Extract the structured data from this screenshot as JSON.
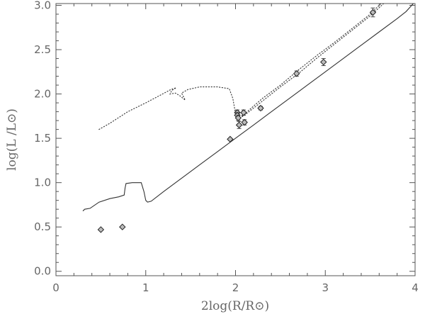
{
  "chart_data": {
    "type": "scatter",
    "title": "",
    "xlabel": "2log(R/R⊙)",
    "ylabel": "log(L /L⊙)",
    "xlim": [
      0,
      4
    ],
    "ylim": [
      -0.05,
      3.02
    ],
    "x_ticks": [
      0,
      1,
      2,
      3,
      4
    ],
    "x_tick_labels": [
      "0",
      "1",
      "2",
      "3",
      "4"
    ],
    "y_ticks": [
      0.0,
      0.5,
      1.0,
      1.5,
      2.0,
      2.5,
      3.0
    ],
    "y_tick_labels": [
      "0.0",
      "0.5",
      "1.0",
      "1.5",
      "2.0",
      "2.5",
      "3.0"
    ],
    "grid": false,
    "series": [
      {
        "style": "solid",
        "points": [
          [
            0.3,
            0.68
          ],
          [
            0.32,
            0.7
          ],
          [
            0.38,
            0.71
          ],
          [
            0.48,
            0.78
          ],
          [
            0.6,
            0.82
          ],
          [
            0.7,
            0.84
          ],
          [
            0.76,
            0.86
          ],
          [
            0.77,
            0.94
          ],
          [
            0.78,
            0.99
          ],
          [
            0.85,
            1.0
          ],
          [
            0.9,
            1.0
          ],
          [
            0.95,
            1.0
          ],
          [
            0.98,
            0.9
          ],
          [
            1.0,
            0.8
          ],
          [
            1.02,
            0.78
          ],
          [
            1.06,
            0.79
          ],
          [
            1.2,
            0.9
          ],
          [
            1.4,
            1.05
          ],
          [
            1.6,
            1.2
          ],
          [
            1.8,
            1.35
          ],
          [
            2.0,
            1.5
          ],
          [
            2.2,
            1.65
          ],
          [
            2.4,
            1.8
          ],
          [
            2.6,
            1.95
          ],
          [
            2.8,
            2.1
          ],
          [
            3.0,
            2.25
          ],
          [
            3.2,
            2.4
          ],
          [
            3.4,
            2.55
          ],
          [
            3.6,
            2.7
          ],
          [
            3.8,
            2.85
          ],
          [
            3.9,
            2.93
          ],
          [
            3.98,
            3.02
          ]
        ]
      },
      {
        "style": "dotted",
        "points": [
          [
            0.48,
            1.6
          ],
          [
            0.6,
            1.67
          ],
          [
            0.8,
            1.8
          ],
          [
            1.0,
            1.9
          ],
          [
            1.15,
            1.98
          ],
          [
            1.28,
            2.05
          ],
          [
            1.34,
            2.07
          ],
          [
            1.29,
            2.04
          ],
          [
            1.27,
            2.0
          ],
          [
            1.33,
            2.01
          ],
          [
            1.38,
            1.98
          ],
          [
            1.44,
            1.93
          ],
          [
            1.4,
            2.01
          ],
          [
            1.47,
            2.05
          ],
          [
            1.6,
            2.08
          ],
          [
            1.8,
            2.08
          ],
          [
            1.93,
            2.06
          ],
          [
            1.97,
            1.95
          ],
          [
            2.0,
            1.78
          ],
          [
            2.02,
            1.73
          ],
          [
            2.05,
            1.73
          ],
          [
            2.1,
            1.76
          ],
          [
            2.3,
            1.92
          ],
          [
            2.5,
            2.08
          ],
          [
            2.7,
            2.23
          ],
          [
            2.9,
            2.4
          ],
          [
            3.1,
            2.56
          ],
          [
            3.3,
            2.72
          ],
          [
            3.5,
            2.88
          ],
          [
            3.65,
            3.02
          ]
        ]
      },
      {
        "style": "dotted",
        "points": [
          [
            2.05,
            1.73
          ],
          [
            2.3,
            1.95
          ],
          [
            2.5,
            2.1
          ],
          [
            2.7,
            2.27
          ],
          [
            2.9,
            2.43
          ],
          [
            3.1,
            2.58
          ],
          [
            3.3,
            2.74
          ],
          [
            3.5,
            2.9
          ],
          [
            3.62,
            3.02
          ]
        ]
      }
    ],
    "points": [
      {
        "x": 0.5,
        "y": 0.47,
        "yerr": 0
      },
      {
        "x": 0.74,
        "y": 0.5,
        "yerr": 0
      },
      {
        "x": 1.94,
        "y": 1.49,
        "yerr": 0
      },
      {
        "x": 2.02,
        "y": 1.79,
        "yerr": 0.03
      },
      {
        "x": 2.02,
        "y": 1.76,
        "yerr": 0.03
      },
      {
        "x": 2.03,
        "y": 1.73,
        "yerr": 0.03
      },
      {
        "x": 2.04,
        "y": 1.65,
        "yerr": 0.04
      },
      {
        "x": 2.09,
        "y": 1.79,
        "yerr": 0.03
      },
      {
        "x": 2.1,
        "y": 1.68,
        "yerr": 0.03
      },
      {
        "x": 2.28,
        "y": 1.84,
        "yerr": 0.02
      },
      {
        "x": 2.68,
        "y": 2.23,
        "yerr": 0.03
      },
      {
        "x": 2.98,
        "y": 2.36,
        "yerr": 0.04
      },
      {
        "x": 3.53,
        "y": 2.92,
        "yerr": 0.05
      }
    ]
  }
}
